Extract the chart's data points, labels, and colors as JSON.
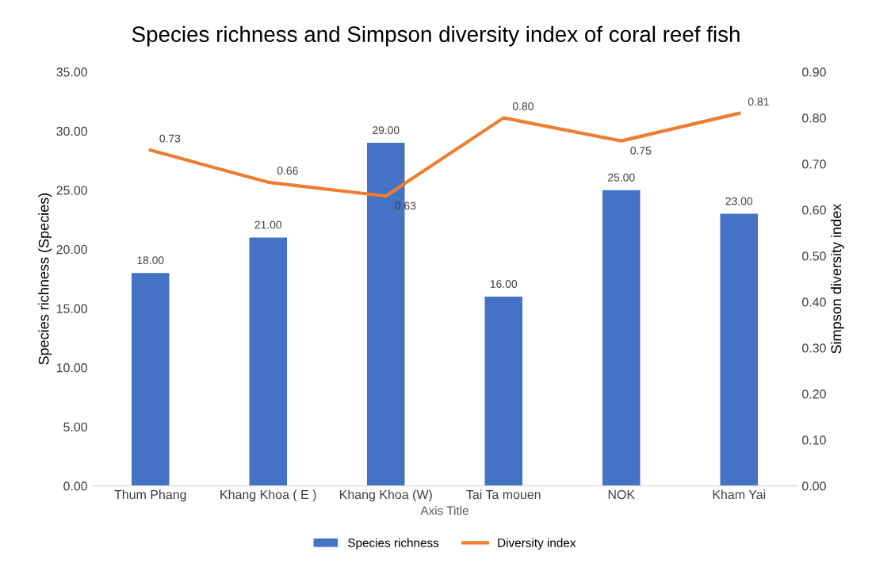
{
  "chart_data": {
    "type": "bar",
    "title": "Species richness and Simpson diversity index of coral reef fish",
    "xlabel": "Axis Title",
    "ylabel": "Species richness (Species)",
    "y2label": "Simpson diversity index",
    "categories": [
      "Thum Phang",
      "Khang Khoa ( E )",
      "Khang Khoa (W)",
      "Tai Ta mouen",
      "NOK",
      "Kham Yai"
    ],
    "series": [
      {
        "name": "Species richness",
        "color": "#4472c4",
        "values": [
          18,
          21,
          29,
          16,
          25,
          23
        ],
        "value_labels": [
          "18.00",
          "21.00",
          "29.00",
          "16.00",
          "25.00",
          "23.00"
        ]
      },
      {
        "name": "Diversity index",
        "type": "line",
        "axis": "y2",
        "color": "#ed7d31",
        "values": [
          0.73,
          0.66,
          0.63,
          0.8,
          0.75,
          0.81
        ],
        "value_labels": [
          "0.73",
          "0.66",
          "0.63",
          "0.80",
          "0.75",
          "0.81"
        ]
      }
    ],
    "ylim": [
      0,
      35
    ],
    "yticks": [
      {
        "value": 0,
        "label": "0.00"
      },
      {
        "value": 5,
        "label": "5.00"
      },
      {
        "value": 10,
        "label": "10.00"
      },
      {
        "value": 15,
        "label": "15.00"
      },
      {
        "value": 20,
        "label": "20.00"
      },
      {
        "value": 25,
        "label": "25.00"
      },
      {
        "value": 30,
        "label": "30.00"
      },
      {
        "value": 35,
        "label": "35.00"
      }
    ],
    "y2lim": [
      0,
      0.9
    ],
    "y2ticks": [
      {
        "value": 0,
        "label": "0.00"
      },
      {
        "value": 0.1,
        "label": "0.10"
      },
      {
        "value": 0.2,
        "label": "0.20"
      },
      {
        "value": 0.3,
        "label": "0.30"
      },
      {
        "value": 0.4,
        "label": "0.40"
      },
      {
        "value": 0.5,
        "label": "0.50"
      },
      {
        "value": 0.6,
        "label": "0.60"
      },
      {
        "value": 0.7,
        "label": "0.70"
      },
      {
        "value": 0.8,
        "label": "0.80"
      },
      {
        "value": 0.9,
        "label": "0.90"
      }
    ],
    "grid": false,
    "legend": "bottom",
    "marker": "none",
    "line_style": "solid"
  }
}
